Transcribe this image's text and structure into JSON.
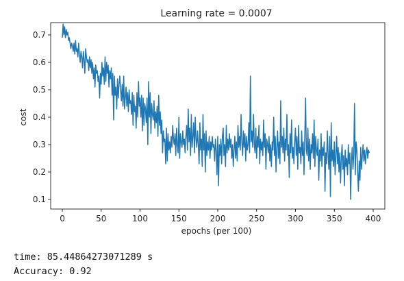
{
  "chart_data": {
    "type": "line",
    "title": "Learning rate = 0.0007",
    "xlabel": "epochs (per 100)",
    "ylabel": "cost",
    "xlim": [
      -15,
      415
    ],
    "ylim": [
      0.065,
      0.745
    ],
    "xticks": [
      0,
      50,
      100,
      150,
      200,
      250,
      300,
      350,
      400
    ],
    "yticks": [
      0.1,
      0.2,
      0.3,
      0.4,
      0.5,
      0.6,
      0.7
    ],
    "grid": false,
    "colors": {
      "line": "#1f77b4",
      "axes": "#000000"
    },
    "series": [
      {
        "values": [
          0.69,
          0.74,
          0.7,
          0.73,
          0.69,
          0.72,
          0.7,
          0.71,
          0.68,
          0.69,
          0.67,
          0.65,
          0.67,
          0.66,
          0.64,
          0.67,
          0.63,
          0.68,
          0.64,
          0.65,
          0.62,
          0.67,
          0.63,
          0.6,
          0.64,
          0.62,
          0.58,
          0.64,
          0.61,
          0.56,
          0.65,
          0.62,
          0.6,
          0.61,
          0.57,
          0.62,
          0.58,
          0.61,
          0.56,
          0.6,
          0.54,
          0.58,
          0.51,
          0.59,
          0.56,
          0.57,
          0.53,
          0.55,
          0.47,
          0.56,
          0.52,
          0.6,
          0.55,
          0.58,
          0.52,
          0.62,
          0.53,
          0.6,
          0.56,
          0.59,
          0.51,
          0.57,
          0.54,
          0.58,
          0.48,
          0.56,
          0.39,
          0.55,
          0.48,
          0.51,
          0.43,
          0.54,
          0.47,
          0.52,
          0.55,
          0.5,
          0.46,
          0.52,
          0.44,
          0.55,
          0.43,
          0.47,
          0.51,
          0.44,
          0.49,
          0.42,
          0.5,
          0.45,
          0.46,
          0.41,
          0.49,
          0.37,
          0.48,
          0.42,
          0.44,
          0.36,
          0.49,
          0.4,
          0.53,
          0.44,
          0.47,
          0.4,
          0.48,
          0.35,
          0.47,
          0.37,
          0.45,
          0.43,
          0.38,
          0.47,
          0.3,
          0.53,
          0.4,
          0.49,
          0.34,
          0.45,
          0.41,
          0.39,
          0.46,
          0.36,
          0.42,
          0.38,
          0.44,
          0.33,
          0.48,
          0.37,
          0.42,
          0.34,
          0.39,
          0.27,
          0.35,
          0.31,
          0.32,
          0.23,
          0.36,
          0.24,
          0.34,
          0.28,
          0.31,
          0.27,
          0.33,
          0.29,
          0.37,
          0.32,
          0.3,
          0.34,
          0.26,
          0.36,
          0.3,
          0.27,
          0.4,
          0.25,
          0.34,
          0.31,
          0.29,
          0.35,
          0.3,
          0.32,
          0.27,
          0.33,
          0.37,
          0.28,
          0.43,
          0.31,
          0.36,
          0.26,
          0.41,
          0.29,
          0.33,
          0.38,
          0.27,
          0.4,
          0.32,
          0.29,
          0.35,
          0.3,
          0.23,
          0.38,
          0.28,
          0.32,
          0.22,
          0.41,
          0.28,
          0.34,
          0.2,
          0.35,
          0.26,
          0.31,
          0.28,
          0.33,
          0.25,
          0.31,
          0.28,
          0.33,
          0.29,
          0.3,
          0.24,
          0.32,
          0.28,
          0.19,
          0.33,
          0.15,
          0.3,
          0.26,
          0.32,
          0.23,
          0.33,
          0.36,
          0.26,
          0.3,
          0.22,
          0.37,
          0.27,
          0.32,
          0.28,
          0.34,
          0.29,
          0.32,
          0.25,
          0.3,
          0.22,
          0.28,
          0.33,
          0.25,
          0.31,
          0.24,
          0.37,
          0.29,
          0.33,
          0.28,
          0.41,
          0.31,
          0.26,
          0.35,
          0.29,
          0.34,
          0.24,
          0.33,
          0.28,
          0.3,
          0.38,
          0.27,
          0.55,
          0.31,
          0.35,
          0.29,
          0.41,
          0.3,
          0.27,
          0.36,
          0.25,
          0.33,
          0.29,
          0.37,
          0.23,
          0.32,
          0.28,
          0.31,
          0.26,
          0.39,
          0.29,
          0.34,
          0.21,
          0.32,
          0.3,
          0.27,
          0.33,
          0.24,
          0.3,
          0.22,
          0.31,
          0.28,
          0.4,
          0.26,
          0.33,
          0.2,
          0.29,
          0.35,
          0.25,
          0.31,
          0.23,
          0.46,
          0.29,
          0.33,
          0.27,
          0.36,
          0.24,
          0.32,
          0.28,
          0.41,
          0.26,
          0.3,
          0.18,
          0.34,
          0.27,
          0.39,
          0.25,
          0.29,
          0.23,
          0.31,
          0.36,
          0.26,
          0.33,
          0.21,
          0.37,
          0.27,
          0.29,
          0.23,
          0.35,
          0.26,
          0.31,
          0.19,
          0.33,
          0.47,
          0.28,
          0.26,
          0.36,
          0.24,
          0.32,
          0.21,
          0.3,
          0.27,
          0.34,
          0.25,
          0.39,
          0.22,
          0.33,
          0.28,
          0.26,
          0.32,
          0.17,
          0.28,
          0.24,
          0.34,
          0.22,
          0.29,
          0.26,
          0.31,
          0.13,
          0.27,
          0.23,
          0.35,
          0.26,
          0.21,
          0.33,
          0.11,
          0.38,
          0.24,
          0.28,
          0.22,
          0.31,
          0.19,
          0.26,
          0.33,
          0.23,
          0.29,
          0.2,
          0.27,
          0.16,
          0.25,
          0.3,
          0.21,
          0.26,
          0.15,
          0.28,
          0.22,
          0.25,
          0.19,
          0.3,
          0.23,
          0.27,
          0.1,
          0.24,
          0.29,
          0.21,
          0.26,
          0.45,
          0.19,
          0.31,
          0.28,
          0.2,
          0.13,
          0.24,
          0.17,
          0.29,
          0.21,
          0.26,
          0.3,
          0.24,
          0.28,
          0.23,
          0.27,
          0.29,
          0.25,
          0.28,
          0.27
        ],
        "x_start": 0,
        "x_step": 1
      }
    ]
  },
  "output": {
    "time_text": "time: 85.44864273071289 s",
    "accuracy_text": "Accuracy: 0.92"
  }
}
